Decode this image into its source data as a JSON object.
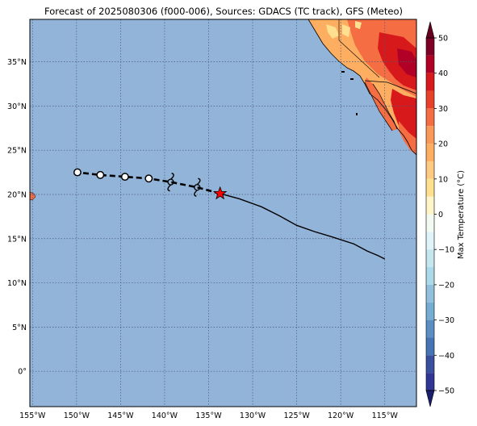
{
  "title": "Forecast of 2025080306 (f000-006), Sources: GDACS (TC track), GFS (Meteo)",
  "map": {
    "extent": {
      "lon_min": -155.3,
      "lon_max": -111.4,
      "lat_min": -4.0,
      "lat_max": 39.8
    },
    "lon_ticks": [
      {
        "value": -155,
        "label": "155°W"
      },
      {
        "value": -150,
        "label": "150°W"
      },
      {
        "value": -145,
        "label": "145°W"
      },
      {
        "value": -140,
        "label": "140°W"
      },
      {
        "value": -135,
        "label": "135°W"
      },
      {
        "value": -130,
        "label": "130°W"
      },
      {
        "value": -125,
        "label": "125°W"
      },
      {
        "value": -120,
        "label": "120°W"
      },
      {
        "value": -115,
        "label": "115°W"
      }
    ],
    "lat_ticks": [
      {
        "value": 35,
        "label": "35°N"
      },
      {
        "value": 30,
        "label": "30°N"
      },
      {
        "value": 25,
        "label": "25°N"
      },
      {
        "value": 20,
        "label": "20°N"
      },
      {
        "value": 15,
        "label": "15°N"
      },
      {
        "value": 10,
        "label": "10°N"
      },
      {
        "value": 5,
        "label": "5°N"
      },
      {
        "value": 0,
        "label": "0°"
      }
    ],
    "grid": "dotted",
    "ocean_color": "#92b4d8"
  },
  "track": {
    "current_position": {
      "lon": -133.7,
      "lat": 20.1,
      "marker": "star-icon",
      "color": "#ff0000"
    },
    "past_track": [
      [
        -133.7,
        20.1
      ],
      [
        -131.5,
        19.5
      ],
      [
        -129.0,
        18.6
      ],
      [
        -127.0,
        17.6
      ],
      [
        -125.0,
        16.5
      ],
      [
        -123.0,
        15.8
      ],
      [
        -121.0,
        15.2
      ],
      [
        -118.5,
        14.4
      ],
      [
        -117.0,
        13.6
      ],
      [
        -115.8,
        13.1
      ],
      [
        -115.0,
        12.7
      ]
    ],
    "forecast_positions": [
      {
        "lon": -136.3,
        "lat": 20.8,
        "symbol": "hurricane-icon"
      },
      {
        "lon": -139.3,
        "lat": 21.4,
        "symbol": "hurricane-icon"
      },
      {
        "lon": -141.8,
        "lat": 21.8,
        "symbol": "depression-icon"
      },
      {
        "lon": -144.5,
        "lat": 22.0,
        "symbol": "depression-icon"
      },
      {
        "lon": -147.3,
        "lat": 22.2,
        "symbol": "depression-icon"
      },
      {
        "lon": -149.9,
        "lat": 22.5,
        "symbol": "depression-icon"
      }
    ]
  },
  "colorbar": {
    "label": "Max Temperature (°C)",
    "ticks": [
      50,
      40,
      30,
      20,
      10,
      0,
      -10,
      -20,
      -30,
      -40,
      -50
    ],
    "levels": [
      {
        "from": 45,
        "to": 50,
        "color": "#7f0026"
      },
      {
        "from": 40,
        "to": 45,
        "color": "#b10026"
      },
      {
        "from": 35,
        "to": 40,
        "color": "#d7191c"
      },
      {
        "from": 30,
        "to": 35,
        "color": "#e8412b"
      },
      {
        "from": 25,
        "to": 30,
        "color": "#f46d43"
      },
      {
        "from": 20,
        "to": 25,
        "color": "#f99858"
      },
      {
        "from": 15,
        "to": 20,
        "color": "#fdae61"
      },
      {
        "from": 10,
        "to": 15,
        "color": "#fec980"
      },
      {
        "from": 5,
        "to": 10,
        "color": "#fee090"
      },
      {
        "from": 0,
        "to": 5,
        "color": "#fff5c8"
      },
      {
        "from": -5,
        "to": 0,
        "color": "#f2faf2"
      },
      {
        "from": -10,
        "to": -5,
        "color": "#e0f3f8"
      },
      {
        "from": -15,
        "to": -10,
        "color": "#c6e6ef"
      },
      {
        "from": -20,
        "to": -15,
        "color": "#abd9e9"
      },
      {
        "from": -25,
        "to": -20,
        "color": "#92c0dc"
      },
      {
        "from": -30,
        "to": -25,
        "color": "#74add1"
      },
      {
        "from": -35,
        "to": -30,
        "color": "#5b8fc4"
      },
      {
        "from": -40,
        "to": -35,
        "color": "#4575b4"
      },
      {
        "from": -45,
        "to": -40,
        "color": "#3a509e"
      },
      {
        "from": -50,
        "to": -45,
        "color": "#313695"
      }
    ],
    "extend_top_color": "#67001f",
    "extend_bottom_color": "#1a1f6e"
  }
}
